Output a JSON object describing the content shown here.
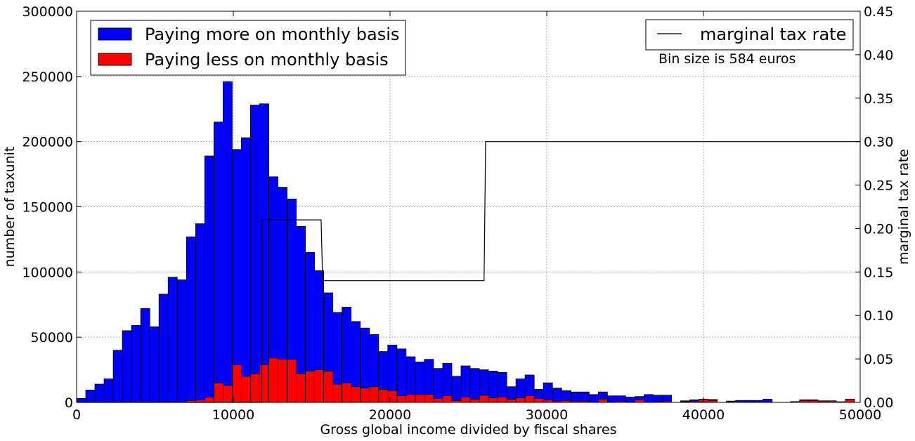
{
  "chart_data": {
    "type": "bar",
    "xlabel": "Gross global income divided by fiscal shares",
    "ylabel": "number of taxunit",
    "y2label": "marginal tax rate",
    "annotation": "Bin size is 584 euros",
    "xlim": [
      0,
      50000
    ],
    "ylim": [
      0,
      300000
    ],
    "y2lim": [
      0,
      0.45
    ],
    "x_ticks": [
      "0",
      "10000",
      "20000",
      "30000",
      "40000",
      "50000"
    ],
    "y_ticks": [
      "0",
      "50000",
      "100000",
      "150000",
      "200000",
      "250000",
      "300000"
    ],
    "y2_ticks": [
      "0.00",
      "0.05",
      "0.10",
      "0.15",
      "0.20",
      "0.25",
      "0.30",
      "0.35",
      "0.40",
      "0.45"
    ],
    "grid": true,
    "bin_width": 584,
    "colors": {
      "more": "#0000ff",
      "less": "#ff0000",
      "line": "#000000"
    },
    "series": [
      {
        "name": "Paying more on monthly basis",
        "values": [
          3000,
          9500,
          14000,
          18000,
          40000,
          55000,
          59000,
          72000,
          58000,
          83000,
          96000,
          94000,
          127000,
          137000,
          189000,
          215000,
          246000,
          194000,
          203000,
          228000,
          229000,
          173000,
          165000,
          156000,
          135000,
          115000,
          101000,
          84000,
          69000,
          73000,
          62000,
          57000,
          52000,
          39000,
          44000,
          41000,
          35000,
          31000,
          33000,
          26000,
          30000,
          20000,
          28000,
          26000,
          25000,
          24000,
          23000,
          12000,
          18000,
          21000,
          10000,
          15000,
          11000,
          9000,
          8000,
          8000,
          6000,
          8000,
          5000,
          5000,
          4000,
          4500,
          6000,
          5500,
          5500,
          0,
          1200,
          2000,
          2500,
          2200,
          0,
          1000,
          1500,
          1500,
          1500,
          2500,
          0,
          0,
          600,
          2000,
          2000,
          1200,
          1200,
          0,
          2500
        ]
      },
      {
        "name": "Paying less on monthly basis",
        "values": [
          0,
          0,
          0,
          0,
          0,
          0,
          0,
          0,
          0,
          0,
          0,
          0,
          1500,
          2000,
          4000,
          15000,
          13000,
          29000,
          20000,
          22000,
          29000,
          34000,
          33000,
          33000,
          22000,
          24000,
          25000,
          24000,
          14000,
          15000,
          12000,
          11000,
          12000,
          10000,
          9000,
          5000,
          6000,
          6000,
          6000,
          3000,
          5000,
          1500,
          4000,
          2500,
          5500,
          3500,
          4000,
          2500,
          3500,
          5000,
          3000,
          2000,
          1000,
          1500,
          1000,
          1000,
          0,
          2500,
          0,
          1000,
          0,
          2000,
          0,
          0,
          1000,
          0,
          500,
          1000,
          2500,
          1500,
          0,
          500,
          0,
          0,
          0,
          0,
          0,
          0,
          0,
          1500,
          1500,
          1000,
          1000,
          500,
          2500
        ]
      },
      {
        "name": "marginal tax rate",
        "axis": "right",
        "x": [
          0,
          11800,
          11800,
          15600,
          15700,
          26000,
          26100,
          50000
        ],
        "y": [
          0,
          0,
          0.21,
          0.21,
          0.14,
          0.14,
          0.3,
          0.3
        ]
      }
    ]
  }
}
